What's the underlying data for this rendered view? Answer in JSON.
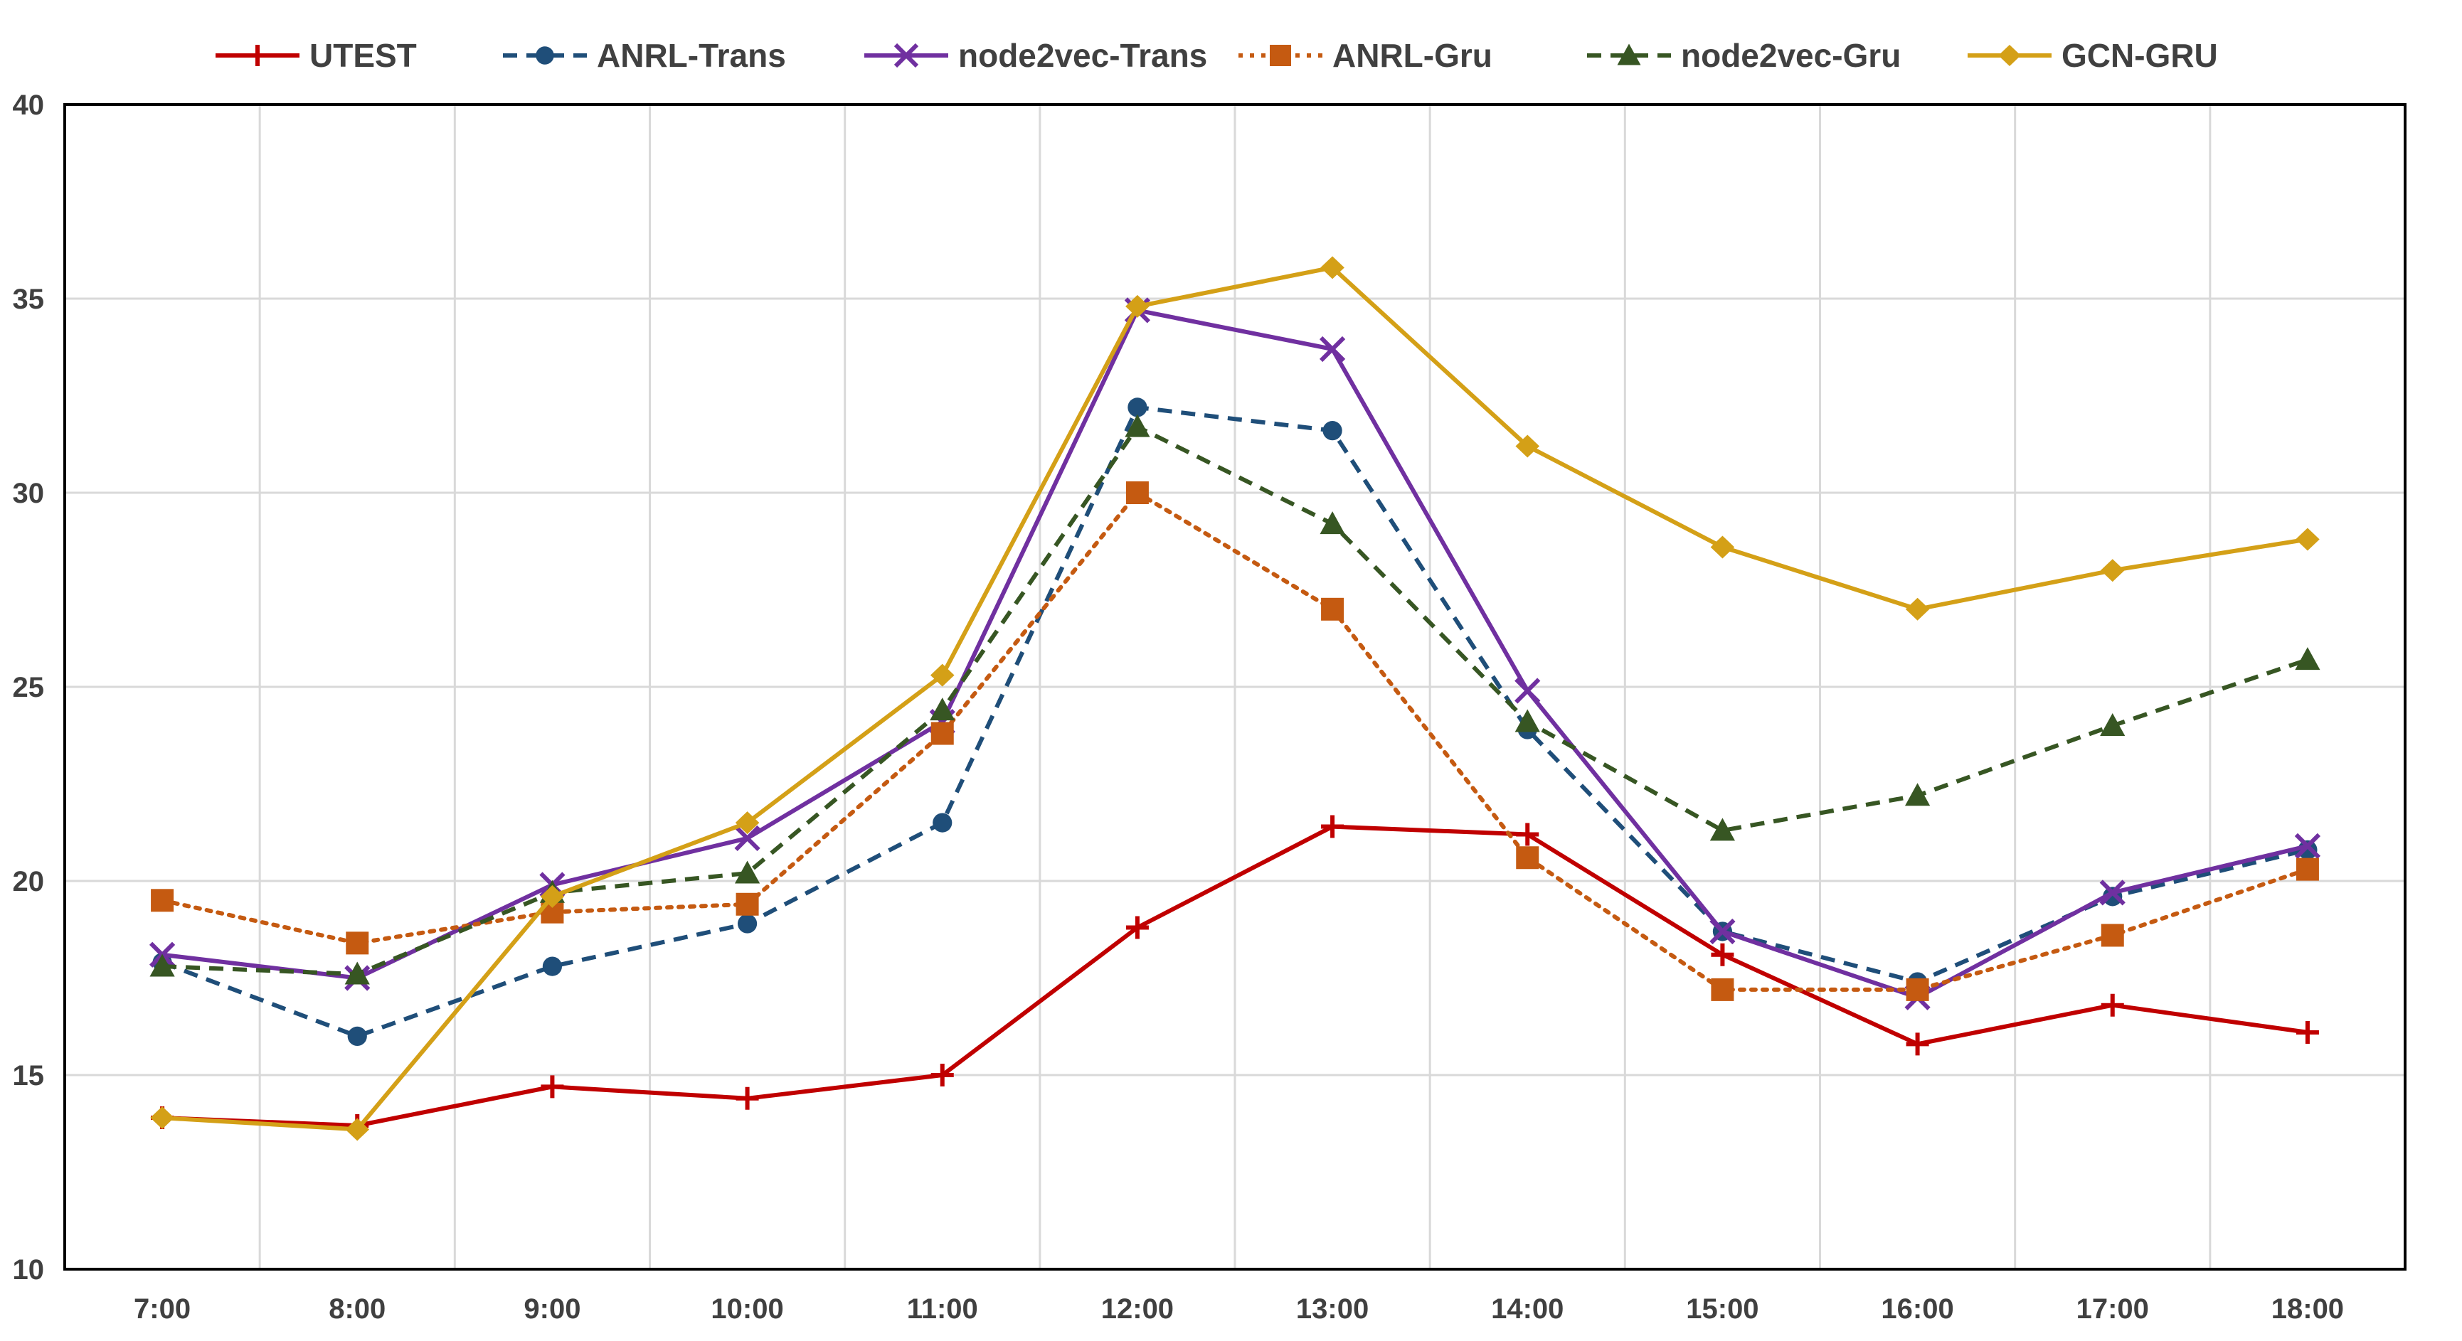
{
  "chart_data": {
    "type": "line",
    "title": "",
    "xlabel": "",
    "ylabel": "",
    "categories": [
      "7:00",
      "8:00",
      "9:00",
      "10:00",
      "11:00",
      "12:00",
      "13:00",
      "14:00",
      "15:00",
      "16:00",
      "17:00",
      "18:00"
    ],
    "ylim": [
      10,
      40
    ],
    "yticks": [
      10,
      15,
      20,
      25,
      30,
      35,
      40
    ],
    "grid": true,
    "legend_position": "top",
    "series": [
      {
        "name": "UTEST",
        "color": "#C00000",
        "dash": "solid",
        "marker": "plus",
        "values": [
          13.9,
          13.7,
          14.7,
          14.4,
          15.0,
          18.8,
          21.4,
          21.2,
          18.1,
          15.8,
          16.8,
          16.1
        ]
      },
      {
        "name": "ANRL-Trans",
        "color": "#1F4E79",
        "dash": "dash",
        "marker": "circle",
        "values": [
          17.9,
          16.0,
          17.8,
          18.9,
          21.5,
          32.2,
          31.6,
          23.9,
          18.7,
          17.4,
          19.6,
          20.8
        ]
      },
      {
        "name": "node2vec-Trans",
        "color": "#7030A0",
        "dash": "solid",
        "marker": "x",
        "values": [
          18.1,
          17.5,
          19.9,
          21.1,
          24.1,
          34.7,
          33.7,
          24.9,
          18.7,
          17.0,
          19.7,
          20.9
        ]
      },
      {
        "name": "ANRL-Gru",
        "color": "#C55A11",
        "dash": "dot",
        "marker": "square",
        "values": [
          19.5,
          18.4,
          19.2,
          19.4,
          23.8,
          30.0,
          27.0,
          20.6,
          17.2,
          17.2,
          18.6,
          20.3
        ]
      },
      {
        "name": "node2vec-Gru",
        "color": "#375623",
        "dash": "dash",
        "marker": "triangle",
        "values": [
          17.8,
          17.6,
          19.7,
          20.2,
          24.4,
          31.7,
          29.2,
          24.1,
          21.3,
          22.2,
          24.0,
          25.7
        ]
      },
      {
        "name": "GCN-GRU",
        "color": "#D4A017",
        "dash": "solid",
        "marker": "diamond",
        "values": [
          13.9,
          13.6,
          19.6,
          21.5,
          25.3,
          34.8,
          35.8,
          31.2,
          28.6,
          27.0,
          28.0,
          28.8
        ]
      }
    ]
  }
}
